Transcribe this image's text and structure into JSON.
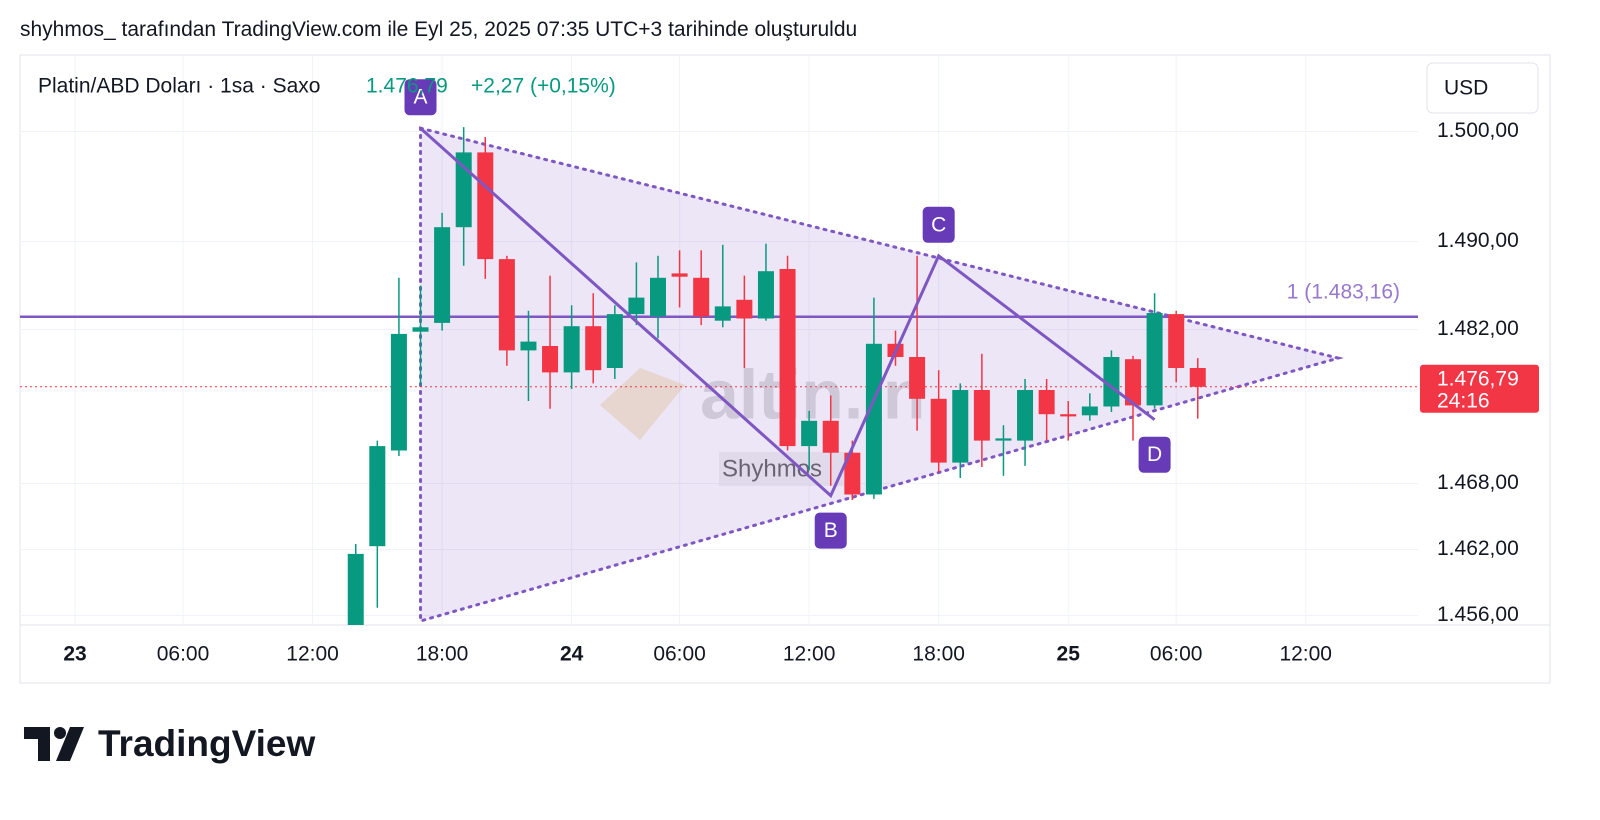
{
  "header": {
    "caption": "shyhmos_ tarafından TradingView.com ile Eyl 25, 2025 07:35 UTC+3 tarihinde oluşturuldu",
    "brand": "TradingView"
  },
  "chart_data": {
    "type": "candlestick",
    "symbol": "Platin/ABD Doları · 1sa · Saxo",
    "last": "1.476,79",
    "change": "+2,27 (+0,15%)",
    "currency": "USD",
    "watermark": "altin.in",
    "author": "Shyhmos",
    "up_color": "#089981",
    "down_color": "#f23645",
    "x": [
      13,
      14,
      15,
      16,
      17,
      18,
      19,
      20,
      21,
      22,
      23,
      24,
      25,
      26,
      27,
      28,
      29,
      30,
      31,
      32,
      33,
      34,
      35,
      36,
      37,
      38,
      39,
      40,
      41,
      42,
      43,
      44,
      45,
      46,
      47,
      48,
      49,
      50,
      51,
      52
    ],
    "open": [
      1455,
      1462.3,
      1471,
      1481.8,
      1482.6,
      1491.3,
      1498.1,
      1488.4,
      1480.1,
      1480.5,
      1478.1,
      1482.3,
      1478.5,
      1483.4,
      1483.2,
      1487.1,
      1486.7,
      1482.8,
      1484.7,
      1483,
      1487.5,
      1471.4,
      1473.7,
      1470.8,
      1467,
      1480.7,
      1479.5,
      1475.7,
      1469.9,
      1476.5,
      1471.9,
      1471.9,
      1476.5,
      1474.3,
      1474.2,
      1475,
      1479.3,
      1475.1,
      1483.4,
      1478.5
    ],
    "high": [
      1462.5,
      1471.9,
      1486.7,
      1486,
      1492.6,
      1500.4,
      1499.5,
      1488.7,
      1483.7,
      1486.9,
      1484.2,
      1485.3,
      1484.2,
      1488.1,
      1488.7,
      1489.2,
      1489.2,
      1489.7,
      1486.9,
      1489.8,
      1488.7,
      1474.6,
      1476,
      1471.9,
      1484.9,
      1481.9,
      1488.7,
      1478.3,
      1477.1,
      1479.8,
      1473.3,
      1477.5,
      1477.5,
      1475.5,
      1476.2,
      1480.1,
      1479.6,
      1485.3,
      1483.7,
      1479.4
    ],
    "low": [
      1455,
      1456.7,
      1470.5,
      1476.9,
      1481.9,
      1487.8,
      1486.6,
      1478.7,
      1475.5,
      1474.8,
      1476.6,
      1477.1,
      1477.5,
      1482.4,
      1481.2,
      1484,
      1482.4,
      1482.2,
      1478.5,
      1482.8,
      1471,
      1469.2,
      1467.8,
      1466.5,
      1466.6,
      1478.7,
      1472.8,
      1469,
      1468.5,
      1469.5,
      1468.7,
      1469.6,
      1471.9,
      1471.9,
      1473.7,
      1474.5,
      1471.9,
      1474.8,
      1477.2,
      1473.9
    ],
    "close": [
      1461.6,
      1471.4,
      1481.6,
      1482.2,
      1491.3,
      1498.1,
      1488.4,
      1480.1,
      1480.9,
      1478.1,
      1482.3,
      1478.3,
      1483.4,
      1484.9,
      1486.7,
      1486.8,
      1483.2,
      1484.1,
      1483,
      1487.3,
      1471.4,
      1473.7,
      1470.8,
      1467,
      1480.7,
      1479.5,
      1475.7,
      1469.9,
      1476.5,
      1471.9,
      1472.1,
      1476.5,
      1474.3,
      1474.1,
      1475,
      1479.5,
      1475.1,
      1483.5,
      1478.5,
      1476.79
    ],
    "xlim": [
      -2.55,
      62.2
    ],
    "xticks": [
      {
        "value": 0,
        "label": "23"
      },
      {
        "value": 5,
        "label": "06:00"
      },
      {
        "value": 11,
        "label": "12:00"
      },
      {
        "value": 17,
        "label": "18:00"
      },
      {
        "value": 23,
        "label": "24"
      },
      {
        "value": 28,
        "label": "06:00"
      },
      {
        "value": 34,
        "label": "12:00"
      },
      {
        "value": 40,
        "label": "18:00"
      },
      {
        "value": 46,
        "label": "25"
      },
      {
        "value": 51,
        "label": "06:00"
      },
      {
        "value": 57,
        "label": "12:00"
      }
    ],
    "ylim": [
      1455.5,
      1506.5
    ],
    "yticks": [
      {
        "value": 1456,
        "label": "1.456,00"
      },
      {
        "value": 1462,
        "label": "1.462,00"
      },
      {
        "value": 1468,
        "label": "1.468,00"
      },
      {
        "value": 1482,
        "label": "1.482,00"
      },
      {
        "value": 1490,
        "label": "1.490,00"
      },
      {
        "value": 1500,
        "label": "1.500,00"
      }
    ],
    "grid": true,
    "price_line": {
      "value": 1476.79,
      "label": "1.476,79",
      "countdown": "24:16",
      "color": "#f23645"
    },
    "horizontal_line": {
      "value": 1483.16,
      "label": "1 (1.483,16)",
      "color": "#7e57c2"
    },
    "triangle": {
      "color": "#7e57c2",
      "x": [
        16,
        58.5,
        16
      ],
      "y": [
        1500.3,
        1479.4,
        1455.5
      ]
    },
    "pattern": {
      "color": "#673ab7",
      "labels": [
        "A",
        "B",
        "C",
        "D"
      ],
      "x": [
        16,
        35,
        40,
        50
      ],
      "y": [
        1500.3,
        1466.9,
        1488.7,
        1473.8
      ],
      "placement": [
        "above",
        "below",
        "above",
        "below"
      ]
    }
  }
}
